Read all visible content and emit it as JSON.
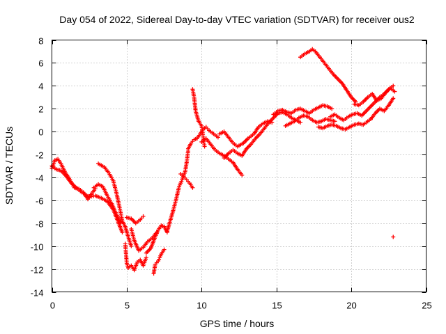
{
  "chart_data": {
    "type": "scatter",
    "title": "Day 054 of 2022, Sidereal Day-to-day VTEC variation (SDTVAR) for receiver ous2",
    "xlabel": "GPS time / hours",
    "ylabel": "SDTVAR / TECUs",
    "xlim": [
      0,
      25
    ],
    "ylim": [
      -14,
      8
    ],
    "xticks": [
      0,
      5,
      10,
      15,
      20,
      25
    ],
    "yticks": [
      -14,
      -12,
      -10,
      -8,
      -6,
      -4,
      -2,
      0,
      2,
      4,
      6,
      8
    ],
    "grid": true,
    "marker": "+",
    "color": "#ff0000",
    "series": [
      {
        "name": "a",
        "x": [
          0.0,
          0.2,
          0.4,
          0.6,
          0.9,
          1.2,
          1.5,
          1.8,
          2.1,
          2.4,
          2.6,
          2.9
        ],
        "y": [
          -3.2,
          -2.5,
          -2.4,
          -2.8,
          -3.6,
          -4.2,
          -4.9,
          -5.0,
          -5.3,
          -5.9,
          -5.5,
          -5.0
        ]
      },
      {
        "name": "b",
        "x": [
          0.0,
          0.3,
          0.6,
          0.9,
          1.3,
          1.7,
          2.1,
          2.5,
          2.9,
          3.3,
          3.7,
          4.1,
          4.4,
          4.7
        ],
        "y": [
          -3.0,
          -3.3,
          -3.4,
          -3.8,
          -4.5,
          -5.0,
          -5.4,
          -5.7,
          -5.6,
          -5.8,
          -6.1,
          -6.8,
          -7.8,
          -8.8
        ]
      },
      {
        "name": "c",
        "x": [
          2.8,
          3.1,
          3.4,
          3.7,
          4.0,
          4.3,
          4.6
        ],
        "y": [
          -4.9,
          -4.6,
          -4.8,
          -5.6,
          -6.3,
          -7.2,
          -8.0
        ]
      },
      {
        "name": "d",
        "x": [
          3.1,
          3.5,
          3.8,
          4.1,
          4.3,
          4.5,
          4.7,
          4.9,
          5.1,
          5.3
        ],
        "y": [
          -2.8,
          -3.1,
          -3.6,
          -4.3,
          -5.3,
          -6.5,
          -7.8,
          -8.3,
          -9.2,
          -10.0
        ]
      },
      {
        "name": "e",
        "x": [
          4.9,
          5.0,
          5.1,
          5.3,
          5.5,
          5.7,
          5.9,
          6.1,
          6.3
        ],
        "y": [
          -9.8,
          -11.5,
          -11.9,
          -11.7,
          -12.1,
          -11.4,
          -11.2,
          -11.7,
          -11.0
        ]
      },
      {
        "name": "f",
        "x": [
          5.0,
          5.3,
          5.6,
          5.9,
          6.1
        ],
        "y": [
          -7.5,
          -7.6,
          -8.0,
          -7.7,
          -7.4
        ]
      },
      {
        "name": "g",
        "x": [
          5.3,
          5.5,
          5.8,
          6.1,
          6.4,
          6.7,
          7.0
        ],
        "y": [
          -8.5,
          -9.5,
          -10.4,
          -10.1,
          -9.6,
          -9.3,
          -8.8
        ]
      },
      {
        "name": "h",
        "x": [
          6.3,
          6.6,
          6.9,
          7.1,
          7.3,
          7.5,
          7.7
        ],
        "y": [
          -10.6,
          -10.2,
          -9.2,
          -8.6,
          -8.2,
          -8.3,
          -8.8
        ]
      },
      {
        "name": "i",
        "x": [
          6.8,
          6.9,
          7.1,
          7.3,
          7.5
        ],
        "y": [
          -12.4,
          -11.6,
          -11.3,
          -10.7,
          -10.3
        ]
      },
      {
        "name": "j",
        "x": [
          7.7,
          7.9,
          8.1,
          8.3,
          8.5,
          8.7,
          8.9,
          9.0,
          9.1
        ],
        "y": [
          -8.7,
          -7.8,
          -6.9,
          -5.9,
          -4.8,
          -4.2,
          -3.5,
          -2.7,
          -1.7
        ]
      },
      {
        "name": "k",
        "x": [
          8.6,
          8.8,
          9.0,
          9.2,
          9.4
        ],
        "y": [
          -3.7,
          -3.9,
          -4.2,
          -4.5,
          -4.9
        ]
      },
      {
        "name": "l",
        "x": [
          9.1,
          9.3,
          9.5,
          9.7,
          9.9,
          10.1,
          10.3,
          10.5,
          10.8,
          11.1
        ],
        "y": [
          -1.5,
          -1.0,
          -0.7,
          -0.6,
          -0.2,
          0.2,
          0.4,
          0.1,
          -0.2,
          -0.5
        ]
      },
      {
        "name": "m",
        "x": [
          9.4,
          9.5,
          9.6,
          9.8,
          10.0,
          10.1,
          10.2
        ],
        "y": [
          3.7,
          3.0,
          1.8,
          0.9,
          0.5,
          -0.4,
          -1.3
        ]
      },
      {
        "name": "n",
        "x": [
          10.0,
          10.3,
          10.6,
          10.9,
          11.2,
          11.5,
          11.8,
          12.1,
          12.4,
          12.7
        ],
        "y": [
          -0.9,
          -0.6,
          -1.1,
          -1.6,
          -1.9,
          -2.1,
          -2.4,
          -2.7,
          -3.3,
          -3.8
        ]
      },
      {
        "name": "o",
        "x": [
          11.2,
          11.5,
          11.8,
          12.1,
          12.4,
          12.8,
          13.1,
          13.5,
          13.8,
          14.1,
          14.4,
          14.7
        ],
        "y": [
          -0.2,
          0.0,
          -0.5,
          -1.0,
          -1.3,
          -1.0,
          -0.6,
          -0.2,
          0.4,
          0.7,
          0.9,
          0.8
        ]
      },
      {
        "name": "p",
        "x": [
          11.5,
          11.8,
          12.1,
          12.4,
          12.7,
          13.0,
          13.3,
          13.6,
          13.9,
          14.2,
          14.5,
          14.8,
          15.1,
          15.4,
          15.7,
          16.0,
          16.3,
          16.6
        ],
        "y": [
          -2.3,
          -1.9,
          -1.6,
          -1.9,
          -2.1,
          -1.5,
          -1.1,
          -0.6,
          -0.2,
          0.3,
          0.8,
          1.2,
          1.6,
          1.7,
          1.5,
          1.2,
          1.0,
          0.8
        ]
      },
      {
        "name": "q",
        "x": [
          14.8,
          15.1,
          15.4,
          15.7,
          16.0,
          16.3,
          16.6,
          16.9,
          17.2,
          17.5,
          17.8,
          18.1,
          18.4,
          18.7
        ],
        "y": [
          1.5,
          1.8,
          1.9,
          1.7,
          1.6,
          1.9,
          2.0,
          1.8,
          1.6,
          1.9,
          2.1,
          2.3,
          2.2,
          2.0
        ]
      },
      {
        "name": "r",
        "x": [
          15.6,
          15.9,
          16.2,
          16.5,
          16.8,
          17.1,
          17.4,
          17.7,
          18.0,
          18.3,
          18.6,
          18.9
        ],
        "y": [
          0.5,
          0.7,
          0.9,
          1.2,
          1.4,
          1.3,
          1.0,
          0.8,
          0.9,
          1.1,
          1.0,
          0.9
        ]
      },
      {
        "name": "s",
        "x": [
          16.6,
          16.9,
          17.2,
          17.4,
          17.6,
          17.9,
          18.2,
          18.5,
          18.8,
          19.1,
          19.4,
          19.7,
          20.0,
          20.3
        ],
        "y": [
          6.5,
          6.8,
          7.0,
          7.2,
          7.0,
          6.5,
          6.0,
          5.5,
          5.0,
          4.6,
          4.2,
          3.6,
          3.0,
          2.6
        ]
      },
      {
        "name": "t",
        "x": [
          17.8,
          18.1,
          18.4,
          18.7,
          19.0,
          19.3,
          19.6,
          19.9,
          20.2,
          20.5,
          20.8,
          21.1,
          21.4
        ],
        "y": [
          0.4,
          0.3,
          0.5,
          0.6,
          0.5,
          0.3,
          0.2,
          0.4,
          0.6,
          0.7,
          0.6,
          0.9,
          1.2
        ]
      },
      {
        "name": "u",
        "x": [
          18.6,
          18.9,
          19.2,
          19.5,
          19.8,
          20.1,
          20.4,
          20.7,
          21.0,
          21.3,
          21.6,
          21.9,
          22.2,
          22.5,
          22.8
        ],
        "y": [
          1.3,
          1.5,
          1.2,
          1.0,
          1.3,
          1.5,
          1.6,
          1.4,
          1.8,
          2.2,
          2.6,
          3.0,
          3.3,
          3.7,
          4.0
        ]
      },
      {
        "name": "v",
        "x": [
          20.2,
          20.5,
          20.8,
          21.1,
          21.4,
          21.7,
          22.0,
          22.3,
          22.6,
          22.9
        ],
        "y": [
          2.4,
          2.3,
          2.6,
          3.0,
          3.3,
          2.7,
          2.9,
          3.4,
          3.8,
          3.5
        ]
      },
      {
        "name": "w",
        "x": [
          21.3,
          21.6,
          21.9,
          22.2,
          22.5,
          22.8
        ],
        "y": [
          1.1,
          1.6,
          2.0,
          1.8,
          2.3,
          2.9
        ]
      },
      {
        "name": "x",
        "x": [
          22.8
        ],
        "y": [
          -9.2
        ]
      }
    ]
  }
}
